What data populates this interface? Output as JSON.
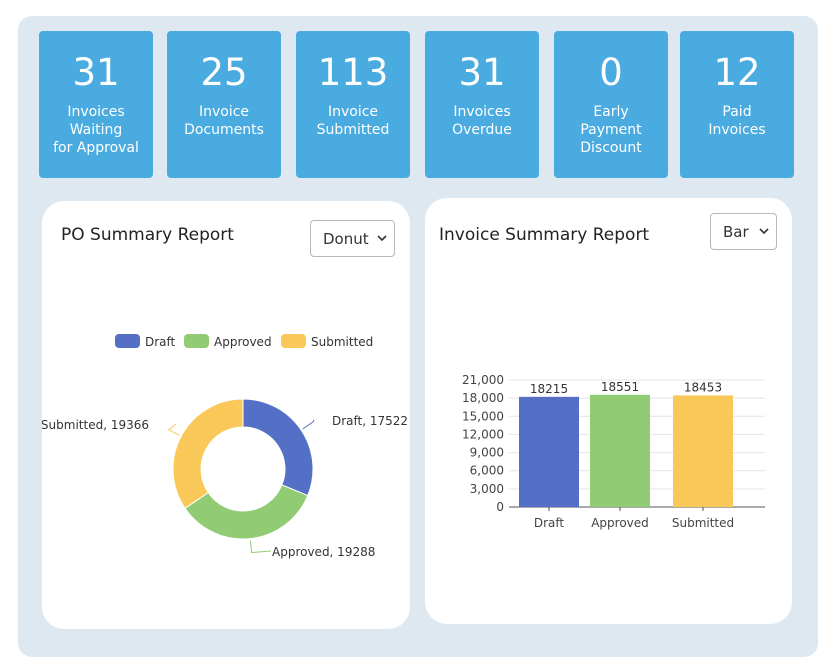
{
  "stats": [
    {
      "value": "31",
      "label": "Invoices\nWaiting\nfor Approval"
    },
    {
      "value": "25",
      "label": "Invoice\nDocuments"
    },
    {
      "value": "113",
      "label": "Invoice\nSubmitted"
    },
    {
      "value": "31",
      "label": "Invoices\nOverdue"
    },
    {
      "value": "0",
      "label": "Early\nPayment\nDiscount"
    },
    {
      "value": "12",
      "label": "Paid\nInvoices"
    }
  ],
  "po_card": {
    "title": "PO Summary Report",
    "chart_type_selected": "Donut"
  },
  "invoice_card": {
    "title": "Invoice Summary Report",
    "chart_type_selected": "Bar"
  },
  "colors": {
    "draft": "#5470c6",
    "approved": "#91cc75",
    "submitted": "#fac858",
    "stat_bg": "#4aabe0",
    "panel_bg": "#dde8f0"
  },
  "chart_data": [
    {
      "type": "pie",
      "variant": "donut",
      "title": "PO Summary Report",
      "legend": [
        "Draft",
        "Approved",
        "Submitted"
      ],
      "legend_position": "top-center",
      "categories": [
        "Draft",
        "Approved",
        "Submitted"
      ],
      "values": [
        17522,
        19288,
        19366
      ],
      "data_labels": [
        "Draft, 17522",
        "Approved, 19288",
        "Submitted, 19366"
      ]
    },
    {
      "type": "bar",
      "title": "Invoice Summary Report",
      "categories": [
        "Draft",
        "Approved",
        "Submitted"
      ],
      "values": [
        18215,
        18551,
        18453
      ],
      "data_labels": [
        "18215",
        "18551",
        "18453"
      ],
      "ylim": [
        0,
        21000
      ],
      "yticks": [
        "0",
        "3,000",
        "6,000",
        "9,000",
        "12,000",
        "15,000",
        "18,000",
        "21,000"
      ],
      "xlabel": "",
      "ylabel": "",
      "grid": true
    }
  ]
}
